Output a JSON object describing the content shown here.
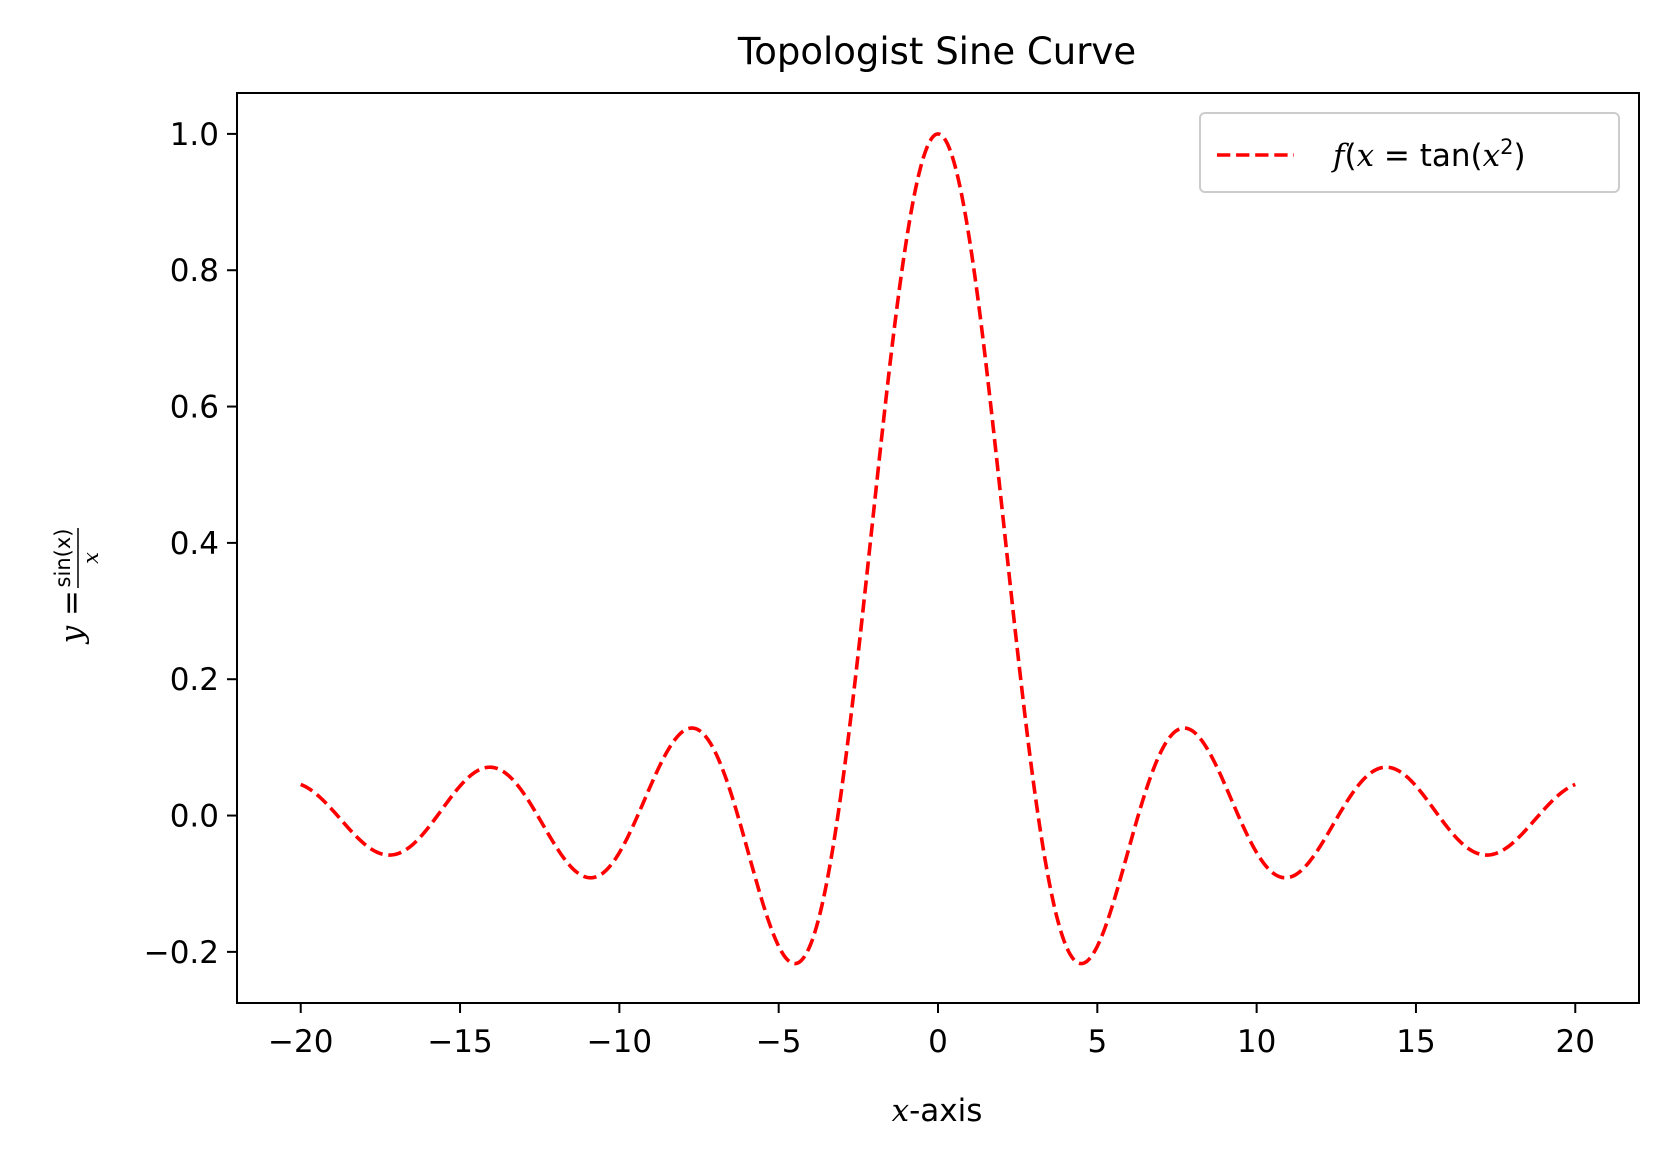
{
  "chart_data": {
    "type": "line",
    "title": "Topologist Sine Curve",
    "xlabel": {
      "var": "x",
      "rest": "-axis"
    },
    "ylabel": {
      "lhs": "y =",
      "num": "sin(x)",
      "den": "x"
    },
    "xlim": [
      -22,
      22
    ],
    "ylim": [
      -0.275,
      1.06
    ],
    "x_ticks": [
      -20,
      -15,
      -10,
      -5,
      0,
      5,
      10,
      15,
      20
    ],
    "x_tick_labels": [
      "−20",
      "−15",
      "−10",
      "−5",
      "0",
      "5",
      "10",
      "15",
      "20"
    ],
    "y_ticks": [
      -0.2,
      0.0,
      0.2,
      0.4,
      0.6,
      0.8,
      1.0
    ],
    "y_tick_labels": [
      "−0.2",
      "0.0",
      "0.2",
      "0.4",
      "0.6",
      "0.8",
      "1.0"
    ],
    "grid": false,
    "legend_position": "top-right",
    "series": [
      {
        "name": "f(x) = tan(x²)",
        "legend": {
          "f": "f",
          "x": "x",
          "eq": " = tan(",
          "x2": "x",
          "sup": "2",
          "close": ")"
        },
        "color": "#ff0000",
        "style": "dashed",
        "x": [
          -20,
          -19,
          -18,
          -17.22,
          -16,
          -15,
          -14.07,
          -13,
          -12,
          -10.9,
          -10,
          -9,
          -7.73,
          -7,
          -6,
          -5,
          -4.49,
          -4,
          -3,
          -2,
          -1,
          -0.5,
          0,
          0.5,
          1,
          2,
          3,
          4,
          4.49,
          5,
          6,
          7,
          7.73,
          9,
          10,
          10.9,
          12,
          13,
          14.07,
          15,
          16,
          17.22,
          18,
          19,
          20
        ],
        "y": [
          0.0456,
          0.0079,
          -0.0417,
          -0.0573,
          -0.018,
          0.0433,
          0.0709,
          0.0323,
          -0.0447,
          -0.0912,
          -0.0544,
          0.0458,
          0.1284,
          0.0939,
          -0.0466,
          -0.1918,
          -0.2172,
          -0.1892,
          0.047,
          0.4546,
          0.8415,
          0.9589,
          1.0,
          0.9589,
          0.8415,
          0.4546,
          0.047,
          -0.1892,
          -0.2172,
          -0.1918,
          -0.0466,
          0.0939,
          0.1284,
          0.0458,
          -0.0544,
          -0.0912,
          -0.0447,
          0.0323,
          0.0709,
          0.0433,
          -0.018,
          -0.0573,
          -0.0417,
          0.0079,
          0.0456
        ]
      }
    ]
  }
}
